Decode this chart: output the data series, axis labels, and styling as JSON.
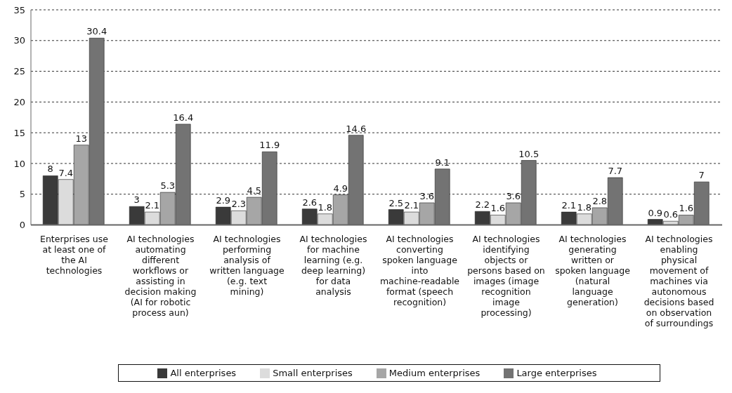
{
  "chart_data": {
    "type": "bar",
    "categories": [
      "Enterprises use at least one of the AI technologies",
      "AI technologies automating different workflows or assisting in decision making (AI for robotic process aun)",
      "AI technologies performing analysis of written language (e.g. text mining)",
      "AI technologies for machine learning (e.g. deep learning) for data analysis",
      "AI technologies converting spoken language into machine-readable format (speech recognition)",
      "AI technologies identifying objects or persons based on images (image recognition image processing)",
      "AI technologies generating written or spoken language (natural language generation)",
      "AI technologies enabling physical movement of machines via autonomous decisions based on observation of surroundings"
    ],
    "series": [
      {
        "name": "All enterprises",
        "color": "#3a3a3a",
        "values": [
          8,
          3,
          2.9,
          2.6,
          2.5,
          2.2,
          2.1,
          0.9
        ]
      },
      {
        "name": "Small enterprises",
        "color": "#dcdcdc",
        "values": [
          7.4,
          2.1,
          2.3,
          1.8,
          2.1,
          1.6,
          1.8,
          0.6
        ]
      },
      {
        "name": "Medium enterprises",
        "color": "#a6a6a6",
        "values": [
          13,
          5.3,
          4.5,
          4.9,
          3.6,
          3.6,
          2.8,
          1.6
        ]
      },
      {
        "name": "Large enterprises",
        "color": "#737373",
        "values": [
          30.4,
          16.4,
          11.9,
          14.6,
          9.1,
          10.5,
          7.7,
          7
        ]
      }
    ],
    "ylim": [
      0,
      35
    ],
    "yticks": [
      0,
      5,
      10,
      15,
      20,
      25,
      30,
      35
    ],
    "grid": "y",
    "legend": "bottom",
    "data_labels": true
  }
}
